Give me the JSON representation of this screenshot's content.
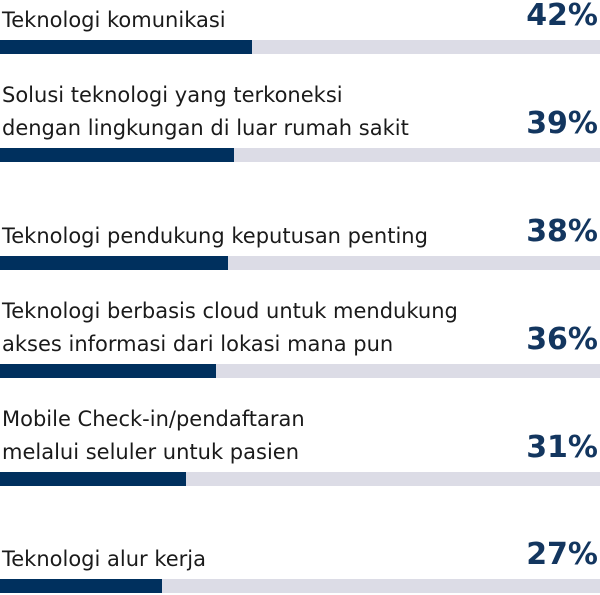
{
  "chart_data": {
    "type": "bar",
    "orientation": "horizontal",
    "categories": [
      "Teknologi komunikasi",
      "Solusi teknologi yang terkoneksi\ndengan lingkungan di luar rumah sakit",
      "Teknologi pendukung keputusan penting",
      "Teknologi berbasis cloud untuk mendukung\nakses informasi dari lokasi mana pun",
      "Mobile Check-in/pendaftaran\nmelalui seluler untuk pasien",
      "Teknologi alur kerja"
    ],
    "values": [
      42,
      39,
      38,
      36,
      31,
      27
    ],
    "value_labels": [
      "42%",
      "39%",
      "38%",
      "36%",
      "31%",
      "27%"
    ],
    "xlim": [
      0,
      100
    ],
    "grid": false,
    "colors": {
      "fill": "#00305e",
      "track": "#dcdce6",
      "value_text": "#13365f"
    }
  }
}
